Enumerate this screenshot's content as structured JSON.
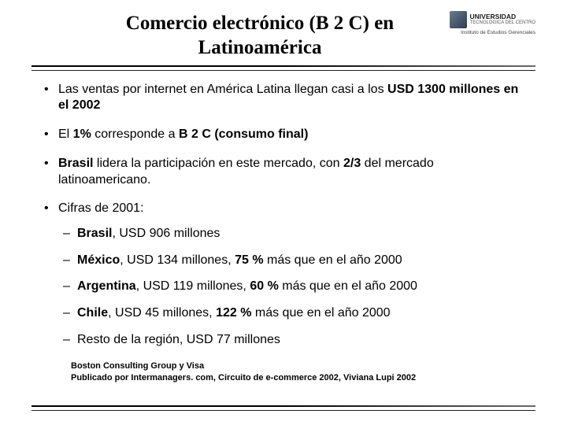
{
  "title_line1": "Comercio electrónico (B 2 C) en",
  "title_line2": "Latinoamérica",
  "logo": {
    "main": "UNIVERSIDAD",
    "sub1": "TECNOLOGICA DEL CENTRO",
    "sub2": "Instituto de Estudios Gerenciales"
  },
  "bullets": {
    "b1a": "Las ventas por internet en América Latina llegan casi a los ",
    "b1b": "USD 1300 millones en el 2002",
    "b2a": "El ",
    "b2b": "1%",
    "b2c": " corresponde a ",
    "b2d": "B 2 C (consumo final)",
    "b3a": "Brasil",
    "b3b": " lidera la participación en este mercado, con ",
    "b3c": "2/3",
    "b3d": " del mercado latinoamericano.",
    "b4": "Cifras de 2001:"
  },
  "sub": {
    "s1a": "Brasil",
    "s1b": ", USD 906 millones",
    "s2a": "México",
    "s2b": ", USD 134 millones, ",
    "s2c": "75 %",
    "s2d": " más que en el año 2000",
    "s3a": "Argentina",
    "s3b": ", USD 119 millones, ",
    "s3c": "60 %",
    "s3d": " más que en el año 2000",
    "s4a": "Chile",
    "s4b": ", USD 45 millones, ",
    "s4c": "122 %",
    "s4d": "  más que en el año 2000",
    "s5": "Resto de la región, USD 77 millones"
  },
  "source": {
    "l1": "Boston Consulting Group y Visa",
    "l2": "Publicado por Intermanagers. com, Circuito de e-commerce 2002, Viviana Lupi 2002"
  }
}
